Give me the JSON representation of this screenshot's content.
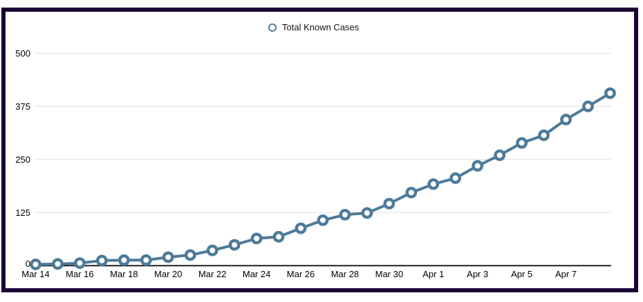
{
  "window": {
    "frame_color": "#1c0235",
    "background_color": "#ffffff"
  },
  "legend": {
    "label": "Total Known Cases",
    "marker": "open-circle-icon",
    "marker_color": "#4d7a99",
    "position": "top-center"
  },
  "chart_data": {
    "type": "line",
    "title": "",
    "xlabel": "",
    "ylabel": "",
    "x": [
      "Mar 14",
      "Mar 15",
      "Mar 16",
      "Mar 17",
      "Mar 18",
      "Mar 19",
      "Mar 20",
      "Mar 21",
      "Mar 22",
      "Mar 23",
      "Mar 24",
      "Mar 25",
      "Mar 26",
      "Mar 27",
      "Mar 28",
      "Mar 29",
      "Mar 30",
      "Mar 31",
      "Apr 1",
      "Apr 2",
      "Apr 3",
      "Apr 4",
      "Apr 5",
      "Apr 6",
      "Apr 7",
      "Apr 8",
      "Apr 9"
    ],
    "series": [
      {
        "name": "Total Known Cases",
        "values": [
          3,
          4,
          6,
          12,
          13,
          13,
          20,
          25,
          36,
          49,
          64,
          68,
          88,
          107,
          120,
          124,
          146,
          172,
          192,
          206,
          235,
          260,
          289,
          307,
          344,
          375,
          406
        ]
      }
    ],
    "ylim": [
      0,
      500
    ],
    "yticks": [
      0,
      125,
      250,
      375,
      500
    ],
    "xtick_labels": [
      "Mar 14",
      "Mar 16",
      "Mar 18",
      "Mar 20",
      "Mar 22",
      "Mar 24",
      "Mar 26",
      "Mar 28",
      "Mar 30",
      "Apr 1",
      "Apr 3",
      "Apr 5",
      "Apr 7"
    ],
    "xtick_day_indices": [
      0,
      2,
      4,
      6,
      8,
      10,
      12,
      14,
      16,
      18,
      20,
      22,
      24
    ],
    "grid": "horizontal",
    "legend_position": "top-center",
    "marker_style": "open-circle",
    "line_color": "#4d7a99",
    "grid_color": "#e8e8e8",
    "axis_color": "#111111",
    "tick_label_color": "#000000"
  }
}
